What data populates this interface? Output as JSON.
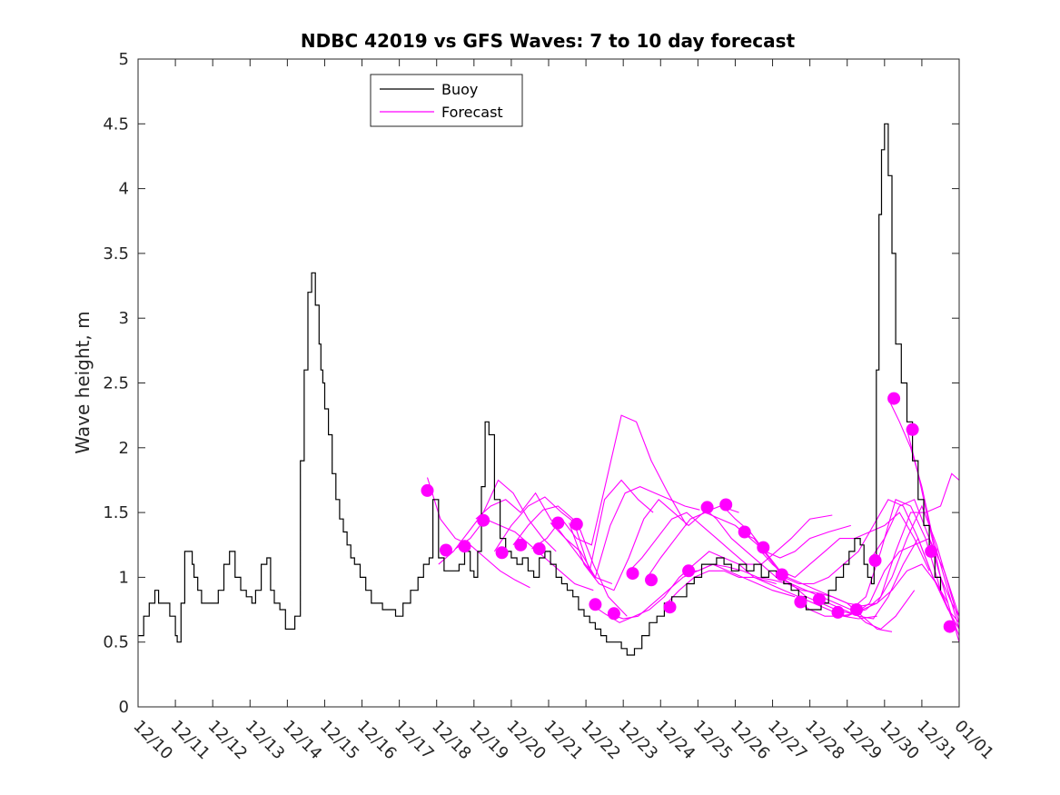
{
  "chart_data": {
    "type": "line",
    "title": "NDBC 42019 vs GFS Waves: 7 to 10 day forecast",
    "xlabel": "",
    "ylabel": "Wave height, m",
    "ylim": [
      0,
      5
    ],
    "xlim": [
      0,
      22
    ],
    "y_ticks": [
      0,
      0.5,
      1,
      1.5,
      2,
      2.5,
      3,
      3.5,
      4,
      4.5,
      5
    ],
    "y_tick_labels": [
      "0",
      "0.5",
      "1",
      "1.5",
      "2",
      "2.5",
      "3",
      "3.5",
      "4",
      "4.5",
      "5"
    ],
    "x_tick_labels": [
      "12/10",
      "12/11",
      "12/12",
      "12/13",
      "12/14",
      "12/15",
      "12/16",
      "12/17",
      "12/18",
      "12/19",
      "12/20",
      "12/21",
      "12/22",
      "12/23",
      "12/24",
      "12/25",
      "12/26",
      "12/27",
      "12/28",
      "12/29",
      "12/30",
      "12/31",
      "01/01"
    ],
    "legend": {
      "placement": "top-left",
      "entries": [
        {
          "label": "Buoy",
          "color": "#000000"
        },
        {
          "label": "Forecast",
          "color": "#ff00ff"
        }
      ]
    },
    "colors": {
      "buoy": "#000000",
      "forecast": "#ff00ff",
      "axis": "#262626"
    },
    "buoy": {
      "name": "Buoy",
      "x": [
        0,
        0.15,
        0.3,
        0.45,
        0.55,
        0.7,
        0.85,
        1.0,
        1.05,
        1.15,
        1.25,
        1.35,
        1.45,
        1.5,
        1.6,
        1.7,
        1.85,
        2.0,
        2.15,
        2.3,
        2.45,
        2.6,
        2.75,
        2.9,
        3.05,
        3.15,
        3.3,
        3.45,
        3.55,
        3.65,
        3.8,
        3.95,
        4.05,
        4.2,
        4.35,
        4.45,
        4.55,
        4.65,
        4.75,
        4.85,
        4.9,
        4.95,
        5.0,
        5.1,
        5.2,
        5.3,
        5.4,
        5.5,
        5.6,
        5.7,
        5.8,
        5.95,
        6.1,
        6.25,
        6.4,
        6.55,
        6.7,
        6.9,
        7.1,
        7.3,
        7.5,
        7.65,
        7.8,
        7.9,
        8.05,
        8.2,
        8.4,
        8.6,
        8.75,
        8.9,
        9.0,
        9.1,
        9.2,
        9.3,
        9.4,
        9.55,
        9.7,
        9.85,
        10.0,
        10.15,
        10.3,
        10.45,
        10.6,
        10.75,
        10.9,
        11.05,
        11.2,
        11.35,
        11.5,
        11.65,
        11.8,
        11.95,
        12.1,
        12.25,
        12.4,
        12.55,
        12.7,
        12.85,
        12.95,
        13.1,
        13.3,
        13.5,
        13.7,
        13.9,
        14.1,
        14.3,
        14.5,
        14.7,
        14.9,
        15.1,
        15.3,
        15.5,
        15.7,
        15.9,
        16.1,
        16.3,
        16.5,
        16.7,
        16.9,
        17.1,
        17.3,
        17.5,
        17.7,
        17.9,
        18.1,
        18.3,
        18.5,
        18.7,
        18.9,
        19.05,
        19.2,
        19.35,
        19.45,
        19.55,
        19.65,
        19.72,
        19.78,
        19.85,
        19.92,
        20.0,
        20.1,
        20.2,
        20.3,
        20.45,
        20.6,
        20.75,
        20.9,
        21.05,
        21.2,
        21.35,
        21.5
      ],
      "values": [
        0.55,
        0.7,
        0.8,
        0.9,
        0.8,
        0.8,
        0.7,
        0.55,
        0.5,
        0.8,
        1.2,
        1.2,
        1.1,
        1.0,
        0.9,
        0.8,
        0.8,
        0.8,
        0.9,
        1.1,
        1.2,
        1.0,
        0.9,
        0.85,
        0.8,
        0.9,
        1.1,
        1.15,
        0.9,
        0.8,
        0.75,
        0.6,
        0.6,
        0.7,
        1.9,
        2.6,
        3.2,
        3.35,
        3.1,
        2.8,
        2.6,
        2.5,
        2.3,
        2.1,
        1.8,
        1.6,
        1.45,
        1.35,
        1.25,
        1.15,
        1.1,
        1.0,
        0.9,
        0.8,
        0.8,
        0.75,
        0.75,
        0.7,
        0.8,
        0.9,
        1.0,
        1.1,
        1.15,
        1.6,
        1.15,
        1.05,
        1.05,
        1.1,
        1.2,
        1.05,
        1.0,
        1.2,
        1.7,
        2.2,
        2.1,
        1.6,
        1.3,
        1.2,
        1.15,
        1.1,
        1.15,
        1.05,
        1.0,
        1.15,
        1.2,
        1.1,
        1.0,
        0.95,
        0.9,
        0.85,
        0.75,
        0.7,
        0.65,
        0.6,
        0.55,
        0.5,
        0.5,
        0.5,
        0.45,
        0.4,
        0.45,
        0.55,
        0.65,
        0.7,
        0.8,
        0.85,
        0.85,
        0.95,
        1.0,
        1.1,
        1.1,
        1.15,
        1.1,
        1.05,
        1.1,
        1.05,
        1.1,
        1.0,
        1.05,
        1.0,
        0.95,
        0.9,
        0.85,
        0.75,
        0.75,
        0.8,
        0.9,
        1.0,
        1.1,
        1.2,
        1.3,
        1.25,
        1.1,
        1.0,
        0.95,
        1.1,
        2.6,
        3.8,
        4.3,
        4.5,
        4.1,
        3.5,
        2.8,
        2.5,
        2.2,
        1.9,
        1.6,
        1.4,
        1.2,
        1.0,
        0.9
      ],
      "label": "Buoy"
    },
    "forecast_series": [
      {
        "name": "Forecast",
        "x": [
          7.75,
          8.1,
          8.5,
          8.9,
          9.3,
          9.7,
          10.1,
          10.5
        ],
        "values": [
          1.77,
          1.45,
          1.3,
          1.25,
          1.15,
          1.05,
          0.98,
          0.92
        ]
      },
      {
        "name": "Forecast",
        "x": [
          8.05,
          8.45,
          8.85,
          9.25,
          9.65,
          10.05,
          10.45,
          10.85,
          11.2
        ],
        "values": [
          1.1,
          1.2,
          1.35,
          1.5,
          1.75,
          1.65,
          1.45,
          1.3,
          1.2
        ]
      },
      {
        "name": "Forecast",
        "x": [
          8.5,
          8.9,
          9.3,
          9.7,
          10.1,
          10.5,
          10.9,
          11.3,
          11.7,
          12.2
        ],
        "values": [
          1.22,
          1.3,
          1.45,
          1.4,
          1.35,
          1.25,
          1.15,
          1.05,
          0.95,
          0.9
        ]
      },
      {
        "name": "Forecast",
        "x": [
          9.05,
          9.45,
          9.85,
          10.25,
          10.65,
          11.05,
          11.45,
          11.85,
          12.25,
          12.7
        ],
        "values": [
          1.45,
          1.55,
          1.6,
          1.5,
          1.65,
          1.45,
          1.3,
          1.2,
          1.0,
          0.95
        ]
      },
      {
        "name": "Forecast",
        "x": [
          9.55,
          10.0,
          10.45,
          10.9,
          11.35,
          11.8,
          12.2,
          12.6,
          13.1
        ],
        "values": [
          1.2,
          1.4,
          1.55,
          1.62,
          1.5,
          1.4,
          1.1,
          0.85,
          0.7
        ]
      },
      {
        "name": "Forecast",
        "x": [
          10.05,
          10.45,
          10.85,
          11.25,
          11.65,
          12.1,
          12.5,
          12.95,
          13.4,
          13.8
        ],
        "values": [
          1.25,
          1.4,
          1.52,
          1.55,
          1.45,
          1.05,
          1.6,
          1.75,
          1.6,
          1.5
        ]
      },
      {
        "name": "Forecast",
        "x": [
          10.55,
          10.95,
          11.35,
          11.75,
          12.15,
          12.55,
          12.95,
          13.35,
          13.75,
          14.2,
          14.7
        ],
        "values": [
          1.22,
          1.3,
          1.45,
          1.3,
          1.25,
          1.75,
          2.25,
          2.2,
          1.9,
          1.65,
          1.4
        ]
      },
      {
        "name": "Forecast",
        "x": [
          11.05,
          11.45,
          11.85,
          12.25,
          12.65,
          13.05,
          13.45,
          13.85,
          14.25,
          14.65,
          15.05
        ],
        "values": [
          1.42,
          1.3,
          1.15,
          1.0,
          1.4,
          1.65,
          1.7,
          1.65,
          1.6,
          1.55,
          1.52
        ]
      },
      {
        "name": "Forecast",
        "x": [
          11.55,
          11.95,
          12.35,
          12.75,
          13.15,
          13.55,
          13.95,
          14.35,
          14.75,
          15.15,
          15.6,
          16.1
        ],
        "values": [
          1.42,
          1.1,
          0.95,
          0.9,
          1.15,
          1.45,
          1.6,
          1.5,
          1.4,
          1.5,
          1.55,
          1.5
        ]
      },
      {
        "name": "Forecast",
        "x": [
          12.1,
          12.5,
          12.9,
          13.3,
          13.7,
          14.1,
          14.5,
          14.9,
          15.3,
          15.7,
          16.1,
          16.5,
          17.1
        ],
        "values": [
          0.8,
          0.72,
          0.65,
          0.7,
          0.75,
          0.85,
          1.0,
          1.1,
          1.2,
          1.15,
          1.1,
          1.0,
          0.95
        ]
      },
      {
        "name": "Forecast",
        "x": [
          12.6,
          13.0,
          13.4,
          13.8,
          14.2,
          14.6,
          15.0,
          15.4,
          15.8,
          16.2,
          16.6,
          17.0,
          17.6
        ],
        "values": [
          0.72,
          0.68,
          0.7,
          0.8,
          0.9,
          1.0,
          1.05,
          1.1,
          1.05,
          1.0,
          0.95,
          0.9,
          0.85
        ]
      },
      {
        "name": "Forecast",
        "x": [
          13.1,
          13.5,
          13.9,
          14.3,
          14.7,
          15.1,
          15.5,
          15.9,
          16.3,
          16.7,
          17.1,
          17.5,
          18.0,
          18.6
        ],
        "values": [
          1.03,
          1.15,
          1.3,
          1.45,
          1.5,
          1.4,
          1.3,
          1.2,
          1.1,
          1.1,
          1.2,
          1.3,
          1.45,
          1.48
        ]
      },
      {
        "name": "Forecast",
        "x": [
          13.6,
          14.0,
          14.4,
          14.8,
          15.2,
          15.6,
          16.0,
          16.4,
          16.8,
          17.2,
          17.6,
          18.0,
          18.5,
          19.1
        ],
        "values": [
          0.98,
          1.15,
          1.3,
          1.45,
          1.5,
          1.45,
          1.4,
          1.3,
          1.2,
          1.15,
          1.2,
          1.3,
          1.35,
          1.4
        ]
      },
      {
        "name": "Forecast",
        "x": [
          14.1,
          14.5,
          14.9,
          15.3,
          15.7,
          16.1,
          16.5,
          16.9,
          17.3,
          17.7,
          18.1,
          18.5,
          18.9,
          19.3,
          19.8
        ],
        "values": [
          0.78,
          0.9,
          1.0,
          1.05,
          1.05,
          1.0,
          1.0,
          0.95,
          0.9,
          0.85,
          0.8,
          0.75,
          0.7,
          0.68,
          0.7
        ]
      },
      {
        "name": "Forecast",
        "x": [
          14.6,
          15.0,
          15.4,
          15.8,
          16.2,
          16.6,
          17.0,
          17.4,
          17.8,
          18.2,
          18.6,
          19.0,
          19.4,
          19.8,
          20.2
        ],
        "values": [
          1.05,
          1.05,
          1.1,
          1.08,
          1.05,
          1.0,
          0.98,
          0.95,
          0.9,
          0.88,
          0.85,
          0.8,
          0.7,
          0.6,
          0.58
        ]
      },
      {
        "name": "Forecast",
        "x": [
          15.1,
          15.5,
          15.9,
          16.3,
          16.7,
          17.1,
          17.5,
          17.9,
          18.3,
          18.7,
          19.1,
          19.5,
          19.9,
          20.3,
          20.8
        ],
        "values": [
          1.55,
          1.45,
          1.3,
          1.2,
          1.1,
          1.0,
          0.95,
          0.9,
          0.85,
          0.8,
          0.75,
          0.65,
          0.6,
          0.7,
          0.9
        ]
      },
      {
        "name": "Forecast",
        "x": [
          15.6,
          16.0,
          16.4,
          16.8,
          17.2,
          17.6,
          18.0,
          18.4,
          18.8,
          19.2,
          19.6,
          20.0,
          20.4,
          20.8,
          21.2
        ],
        "values": [
          1.57,
          1.45,
          1.35,
          1.2,
          1.05,
          1.0,
          1.1,
          1.2,
          1.3,
          1.3,
          1.35,
          1.4,
          1.5,
          1.3,
          1.05
        ]
      },
      {
        "name": "Forecast",
        "x": [
          16.1,
          16.5,
          16.9,
          17.3,
          17.7,
          18.1,
          18.5,
          18.9,
          19.3,
          19.7,
          20.1,
          20.5,
          20.9,
          21.3,
          21.7
        ],
        "values": [
          1.35,
          1.3,
          1.15,
          1.0,
          0.95,
          0.95,
          1.0,
          1.1,
          1.2,
          1.4,
          1.6,
          1.55,
          1.3,
          1.0,
          0.8
        ]
      },
      {
        "name": "Forecast",
        "x": [
          16.6,
          17.0,
          17.4,
          17.8,
          18.2,
          18.6,
          19.0,
          19.4,
          19.8,
          20.2,
          20.6,
          21.0,
          21.4,
          21.8,
          22.0
        ],
        "values": [
          1.23,
          1.1,
          1.0,
          0.95,
          0.9,
          0.85,
          0.8,
          0.78,
          0.8,
          0.9,
          1.05,
          1.1,
          0.95,
          0.7,
          0.6
        ]
      },
      {
        "name": "Forecast",
        "x": [
          17.1,
          17.5,
          17.9,
          18.3,
          18.7,
          19.1,
          19.5,
          19.9,
          20.3,
          20.7,
          21.1,
          21.5,
          21.8,
          22.0
        ],
        "values": [
          1.02,
          0.95,
          0.85,
          0.8,
          0.75,
          0.72,
          0.75,
          0.85,
          1.2,
          1.5,
          1.5,
          1.55,
          1.8,
          1.75
        ]
      },
      {
        "name": "Forecast",
        "x": [
          17.6,
          18.0,
          18.4,
          18.8,
          19.2,
          19.6,
          20.0,
          20.4,
          20.8,
          21.2,
          21.6,
          22.0
        ],
        "values": [
          0.82,
          0.75,
          0.7,
          0.7,
          0.72,
          0.8,
          1.05,
          1.2,
          1.25,
          1.3,
          1.05,
          0.7
        ]
      },
      {
        "name": "Forecast",
        "x": [
          18.1,
          18.5,
          18.9,
          19.3,
          19.7,
          20.1,
          20.5,
          20.9,
          21.3,
          21.7,
          22.0
        ],
        "values": [
          0.83,
          0.8,
          0.75,
          0.7,
          0.68,
          0.85,
          1.1,
          1.3,
          1.0,
          0.75,
          0.65
        ]
      },
      {
        "name": "Forecast",
        "x": [
          18.6,
          19.0,
          19.4,
          19.8,
          20.2,
          20.6,
          21.0,
          21.4,
          21.8,
          22.0
        ],
        "values": [
          0.73,
          0.7,
          0.75,
          0.8,
          1.0,
          1.3,
          1.55,
          1.25,
          0.85,
          0.65
        ]
      },
      {
        "name": "Forecast",
        "x": [
          19.1,
          19.5,
          19.9,
          20.3,
          20.7,
          21.1,
          21.5,
          22.0
        ],
        "values": [
          0.75,
          0.85,
          1.2,
          1.6,
          1.55,
          1.3,
          0.9,
          0.55
        ]
      },
      {
        "name": "Forecast",
        "x": [
          19.6,
          20.0,
          20.4,
          20.8,
          21.2,
          21.6,
          22.0
        ],
        "values": [
          1.13,
          1.3,
          1.55,
          1.6,
          1.3,
          0.9,
          0.5
        ]
      },
      {
        "name": "Forecast",
        "x": [
          20.1,
          20.4,
          20.7,
          21.0,
          21.3,
          21.6,
          22.0
        ],
        "values": [
          2.38,
          2.2,
          2.0,
          1.7,
          1.3,
          1.0,
          0.6
        ]
      },
      {
        "name": "Forecast",
        "x": [
          20.6,
          20.9,
          21.2,
          21.5,
          21.8,
          22.0
        ],
        "values": [
          2.14,
          1.8,
          1.4,
          1.0,
          0.8,
          0.7
        ]
      }
    ],
    "forecast_markers": {
      "x": [
        7.75,
        8.25,
        8.75,
        9.25,
        9.75,
        10.25,
        10.75,
        11.25,
        11.75,
        12.25,
        12.75,
        13.25,
        13.75,
        14.25,
        14.75,
        15.25,
        15.75,
        16.25,
        16.75,
        17.25,
        17.75,
        18.25,
        18.75,
        19.25,
        19.75,
        20.25,
        20.75,
        21.25,
        21.75
      ],
      "values": [
        1.67,
        1.21,
        1.24,
        1.44,
        1.19,
        1.25,
        1.22,
        1.42,
        1.41,
        0.79,
        0.72,
        1.03,
        0.98,
        0.77,
        1.05,
        1.54,
        1.56,
        1.35,
        1.23,
        1.02,
        0.81,
        0.83,
        0.73,
        0.75,
        1.13,
        2.38,
        2.14,
        1.2,
        0.62
      ]
    }
  }
}
